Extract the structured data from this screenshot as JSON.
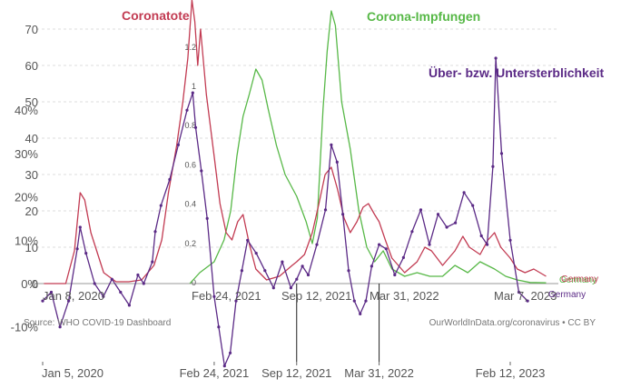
{
  "chart_data": {
    "type": "line",
    "overlay": true,
    "series": [
      {
        "name": "Coronatote",
        "color": "#c23b52",
        "axis": "left_outer",
        "points": [
          [
            "2020-01-08",
            0
          ],
          [
            "2020-03-01",
            0
          ],
          [
            "2020-03-22",
            9
          ],
          [
            "2020-04-05",
            25
          ],
          [
            "2020-04-16",
            23
          ],
          [
            "2020-05-01",
            14
          ],
          [
            "2020-06-01",
            3
          ],
          [
            "2020-07-01",
            0.5
          ],
          [
            "2020-08-01",
            0.5
          ],
          [
            "2020-09-01",
            1
          ],
          [
            "2020-10-01",
            5
          ],
          [
            "2020-10-20",
            12
          ],
          [
            "2020-11-05",
            25
          ],
          [
            "2020-11-25",
            38
          ],
          [
            "2020-12-10",
            50
          ],
          [
            "2020-12-22",
            62
          ],
          [
            "2021-01-01",
            78
          ],
          [
            "2021-01-08",
            72
          ],
          [
            "2021-01-15",
            60
          ],
          [
            "2021-01-22",
            70
          ],
          [
            "2021-02-05",
            52
          ],
          [
            "2021-02-24",
            35
          ],
          [
            "2021-03-10",
            22
          ],
          [
            "2021-03-25",
            14
          ],
          [
            "2021-04-08",
            12
          ],
          [
            "2021-04-22",
            17
          ],
          [
            "2021-05-05",
            19
          ],
          [
            "2021-05-20",
            11
          ],
          [
            "2021-06-05",
            4
          ],
          [
            "2021-07-01",
            1
          ],
          [
            "2021-08-01",
            2
          ],
          [
            "2021-09-01",
            5
          ],
          [
            "2021-09-12",
            6
          ],
          [
            "2021-10-01",
            8
          ],
          [
            "2021-10-20",
            14
          ],
          [
            "2021-11-05",
            22
          ],
          [
            "2021-11-20",
            30
          ],
          [
            "2021-12-05",
            32
          ],
          [
            "2021-12-20",
            26
          ],
          [
            "2022-01-05",
            18
          ],
          [
            "2022-01-20",
            14
          ],
          [
            "2022-02-05",
            17
          ],
          [
            "2022-02-20",
            21
          ],
          [
            "2022-03-05",
            22
          ],
          [
            "2022-03-20",
            19
          ],
          [
            "2022-03-31",
            17
          ],
          [
            "2022-04-15",
            12
          ],
          [
            "2022-05-01",
            7
          ],
          [
            "2022-06-01",
            3
          ],
          [
            "2022-07-01",
            6
          ],
          [
            "2022-07-20",
            10
          ],
          [
            "2022-08-05",
            9
          ],
          [
            "2022-09-01",
            5
          ],
          [
            "2022-10-01",
            9
          ],
          [
            "2022-10-20",
            13
          ],
          [
            "2022-11-05",
            10
          ],
          [
            "2022-12-01",
            8
          ],
          [
            "2022-12-20",
            12
          ],
          [
            "2023-01-05",
            14
          ],
          [
            "2023-01-20",
            10
          ],
          [
            "2023-02-12",
            7
          ],
          [
            "2023-03-01",
            4
          ],
          [
            "2023-03-20",
            3
          ],
          [
            "2023-04-10",
            4
          ],
          [
            "2023-04-25",
            3
          ],
          [
            "2023-05-10",
            2
          ]
        ]
      },
      {
        "name": "Corona-Impfungen",
        "color": "#57b847",
        "axis": "left_outer",
        "points": [
          [
            "2020-12-27",
            0
          ],
          [
            "2021-01-20",
            3
          ],
          [
            "2021-02-24",
            6
          ],
          [
            "2021-03-20",
            12
          ],
          [
            "2021-04-05",
            20
          ],
          [
            "2021-04-20",
            35
          ],
          [
            "2021-05-05",
            46
          ],
          [
            "2021-05-20",
            52
          ],
          [
            "2021-06-05",
            59
          ],
          [
            "2021-06-20",
            56
          ],
          [
            "2021-07-05",
            48
          ],
          [
            "2021-07-25",
            38
          ],
          [
            "2021-08-15",
            30
          ],
          [
            "2021-09-12",
            24
          ],
          [
            "2021-10-05",
            17
          ],
          [
            "2021-10-20",
            11
          ],
          [
            "2021-11-01",
            18
          ],
          [
            "2021-11-15",
            48
          ],
          [
            "2021-11-25",
            64
          ],
          [
            "2021-12-05",
            75
          ],
          [
            "2021-12-15",
            71
          ],
          [
            "2021-12-30",
            50
          ],
          [
            "2022-01-20",
            37
          ],
          [
            "2022-02-10",
            20
          ],
          [
            "2022-03-01",
            10
          ],
          [
            "2022-03-20",
            6
          ],
          [
            "2022-04-10",
            9
          ],
          [
            "2022-05-01",
            4
          ],
          [
            "2022-06-01",
            2
          ],
          [
            "2022-07-01",
            3
          ],
          [
            "2022-08-01",
            2
          ],
          [
            "2022-09-01",
            2
          ],
          [
            "2022-10-01",
            5
          ],
          [
            "2022-11-01",
            3
          ],
          [
            "2022-12-01",
            6
          ],
          [
            "2023-01-05",
            4
          ],
          [
            "2023-02-01",
            2
          ],
          [
            "2023-03-01",
            1
          ],
          [
            "2023-04-01",
            0.3
          ],
          [
            "2023-05-10",
            0.2
          ]
        ]
      },
      {
        "name": "Über- bzw. Untersterblichkeit",
        "color": "#5b2a86",
        "axis": "left_inner",
        "points": [
          [
            "2020-01-05",
            -4
          ],
          [
            "2020-01-26",
            -2
          ],
          [
            "2020-02-16",
            -10
          ],
          [
            "2020-03-08",
            -4
          ],
          [
            "2020-03-29",
            8
          ],
          [
            "2020-04-05",
            13
          ],
          [
            "2020-04-19",
            7
          ],
          [
            "2020-05-10",
            0
          ],
          [
            "2020-05-31",
            -3
          ],
          [
            "2020-06-21",
            1
          ],
          [
            "2020-07-12",
            -2
          ],
          [
            "2020-08-02",
            -5
          ],
          [
            "2020-08-23",
            2
          ],
          [
            "2020-09-06",
            0
          ],
          [
            "2020-09-27",
            5
          ],
          [
            "2020-10-04",
            12
          ],
          [
            "2020-10-18",
            18
          ],
          [
            "2020-11-08",
            24
          ],
          [
            "2020-11-29",
            32
          ],
          [
            "2020-12-20",
            40
          ],
          [
            "2021-01-03",
            44
          ],
          [
            "2021-01-10",
            36
          ],
          [
            "2021-01-24",
            26
          ],
          [
            "2021-02-07",
            15
          ],
          [
            "2021-02-24",
            -3
          ],
          [
            "2021-03-07",
            -10
          ],
          [
            "2021-03-21",
            -19
          ],
          [
            "2021-04-04",
            -16
          ],
          [
            "2021-04-18",
            -4
          ],
          [
            "2021-05-02",
            3
          ],
          [
            "2021-05-16",
            10
          ],
          [
            "2021-06-06",
            7
          ],
          [
            "2021-06-27",
            3
          ],
          [
            "2021-07-18",
            -1
          ],
          [
            "2021-08-08",
            5
          ],
          [
            "2021-08-29",
            -1
          ],
          [
            "2021-09-12",
            1
          ],
          [
            "2021-09-26",
            4
          ],
          [
            "2021-10-10",
            2
          ],
          [
            "2021-10-31",
            9
          ],
          [
            "2021-11-21",
            17
          ],
          [
            "2021-12-05",
            32
          ],
          [
            "2021-12-19",
            28
          ],
          [
            "2022-01-02",
            16
          ],
          [
            "2022-01-16",
            3
          ],
          [
            "2022-01-30",
            -4
          ],
          [
            "2022-02-13",
            -7
          ],
          [
            "2022-02-27",
            -4
          ],
          [
            "2022-03-13",
            4
          ],
          [
            "2022-03-31",
            9
          ],
          [
            "2022-04-17",
            8
          ],
          [
            "2022-05-08",
            2
          ],
          [
            "2022-05-29",
            6
          ],
          [
            "2022-06-19",
            12
          ],
          [
            "2022-07-10",
            17
          ],
          [
            "2022-07-31",
            9
          ],
          [
            "2022-08-21",
            16
          ],
          [
            "2022-09-11",
            13
          ],
          [
            "2022-10-02",
            14
          ],
          [
            "2022-10-23",
            21
          ],
          [
            "2022-11-13",
            18
          ],
          [
            "2022-12-04",
            11
          ],
          [
            "2022-12-18",
            9
          ],
          [
            "2023-01-01",
            27
          ],
          [
            "2023-01-08",
            52
          ],
          [
            "2023-01-22",
            30
          ],
          [
            "2023-02-12",
            10
          ],
          [
            "2023-03-05",
            -2
          ],
          [
            "2023-03-26",
            -4
          ]
        ]
      }
    ],
    "x_ticks_top": [
      "Jan 8, 2020",
      "Feb 24, 2021",
      "Sep 12, 2021",
      "Mar 31, 2022",
      "Mar 7, 2023"
    ],
    "x_ticks_bottom": [
      "Jan 5, 2020",
      "Feb 24, 2021",
      "Sep 12, 2021",
      "Mar 31, 2022",
      "Feb 12, 2023"
    ],
    "y_outer_ticks": [
      "0",
      "10",
      "20",
      "30",
      "40",
      "50",
      "60",
      "70"
    ],
    "y_inner_ticks": [
      "-10%",
      "0%",
      "10%",
      "20%",
      "30%",
      "40%"
    ],
    "y_small_ticks": [
      "0",
      "0.2",
      "0.4",
      "0.6",
      "0.8",
      "1",
      "1.2"
    ],
    "end_labels": [
      "Germany",
      "Germany",
      "Germany"
    ],
    "source": "Source: WHO COVID-19 Dashboard",
    "credit": "OurWorldInData.org/coronavirus • CC BY",
    "grid": true,
    "legend": "inline labels"
  }
}
